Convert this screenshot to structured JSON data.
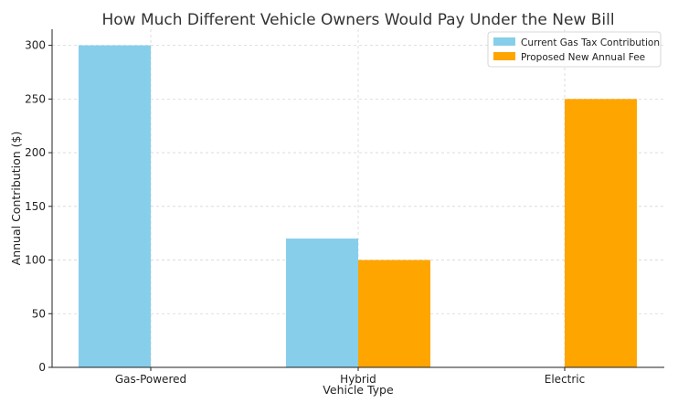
{
  "chart_data": {
    "type": "bar",
    "title": "How Much Different Vehicle Owners Would Pay Under the New Bill",
    "xlabel": "Vehicle Type",
    "ylabel": "Annual Contribution ($)",
    "categories": [
      "Gas-Powered",
      "Hybrid",
      "Electric"
    ],
    "series": [
      {
        "name": "Current Gas Tax Contribution",
        "values": [
          300,
          120,
          0
        ],
        "color": "#87CEEB"
      },
      {
        "name": "Proposed New Annual Fee",
        "values": [
          0,
          100,
          250
        ],
        "color": "#FFA500"
      }
    ],
    "ylim": [
      0,
      315
    ],
    "yticks": [
      0,
      50,
      100,
      150,
      200,
      250,
      300
    ],
    "grid": true,
    "legend_position": "top-right"
  }
}
